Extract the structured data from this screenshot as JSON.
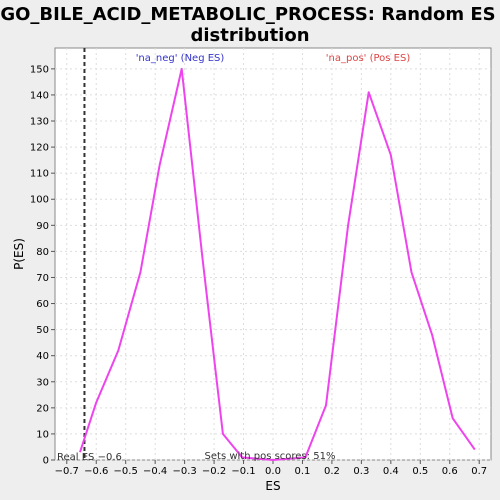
{
  "chart_data": {
    "type": "line",
    "title_lines": [
      "GO_BILE_ACID_METABOLIC_PROCESS: Random ES",
      "distribution"
    ],
    "xlabel": "ES",
    "ylabel": "P(ES)",
    "xlim": [
      -0.74,
      0.74
    ],
    "ylim": [
      0,
      158
    ],
    "xticks": [
      -0.7,
      -0.6,
      -0.5,
      -0.4,
      -0.3,
      -0.2,
      -0.1,
      0.0,
      0.1,
      0.2,
      0.3,
      0.4,
      0.5,
      0.6,
      0.7
    ],
    "xtick_labels": [
      "−0.7",
      "−0.6",
      "−0.5",
      "−0.4",
      "−0.3",
      "−0.2",
      "−0.1",
      "0.0",
      "0.1",
      "0.2",
      "0.3",
      "0.4",
      "0.5",
      "0.6",
      "0.7"
    ],
    "yticks": [
      0,
      10,
      20,
      30,
      40,
      50,
      60,
      70,
      80,
      90,
      100,
      110,
      120,
      130,
      140,
      150
    ],
    "grid": true,
    "series": [
      {
        "color": "#ee44ee",
        "x": [
          -0.655,
          -0.6,
          -0.525,
          -0.45,
          -0.385,
          -0.31,
          -0.24,
          -0.17,
          -0.105,
          0.0,
          0.11,
          0.18,
          0.255,
          0.325,
          0.4,
          0.47,
          0.54,
          0.61,
          0.685
        ],
        "y": [
          3,
          22,
          42,
          72,
          113,
          150,
          78,
          10,
          1,
          0,
          1,
          21,
          90,
          141,
          117,
          72,
          48,
          16,
          4
        ]
      }
    ],
    "real_es_line": {
      "x": -0.64,
      "style": "dashed",
      "color": "#333333"
    },
    "annotations": {
      "neg": {
        "text": "'na_neg' (Neg ES)",
        "color": "#3333cc"
      },
      "pos": {
        "text": "'na_pos' (Pos ES)",
        "color": "#dd4444"
      },
      "sets_pos": {
        "text": "Sets with pos scores: 51%",
        "color": "#333333"
      },
      "real_es": {
        "text": "Real ES −0.6",
        "color": "#333333"
      }
    }
  }
}
